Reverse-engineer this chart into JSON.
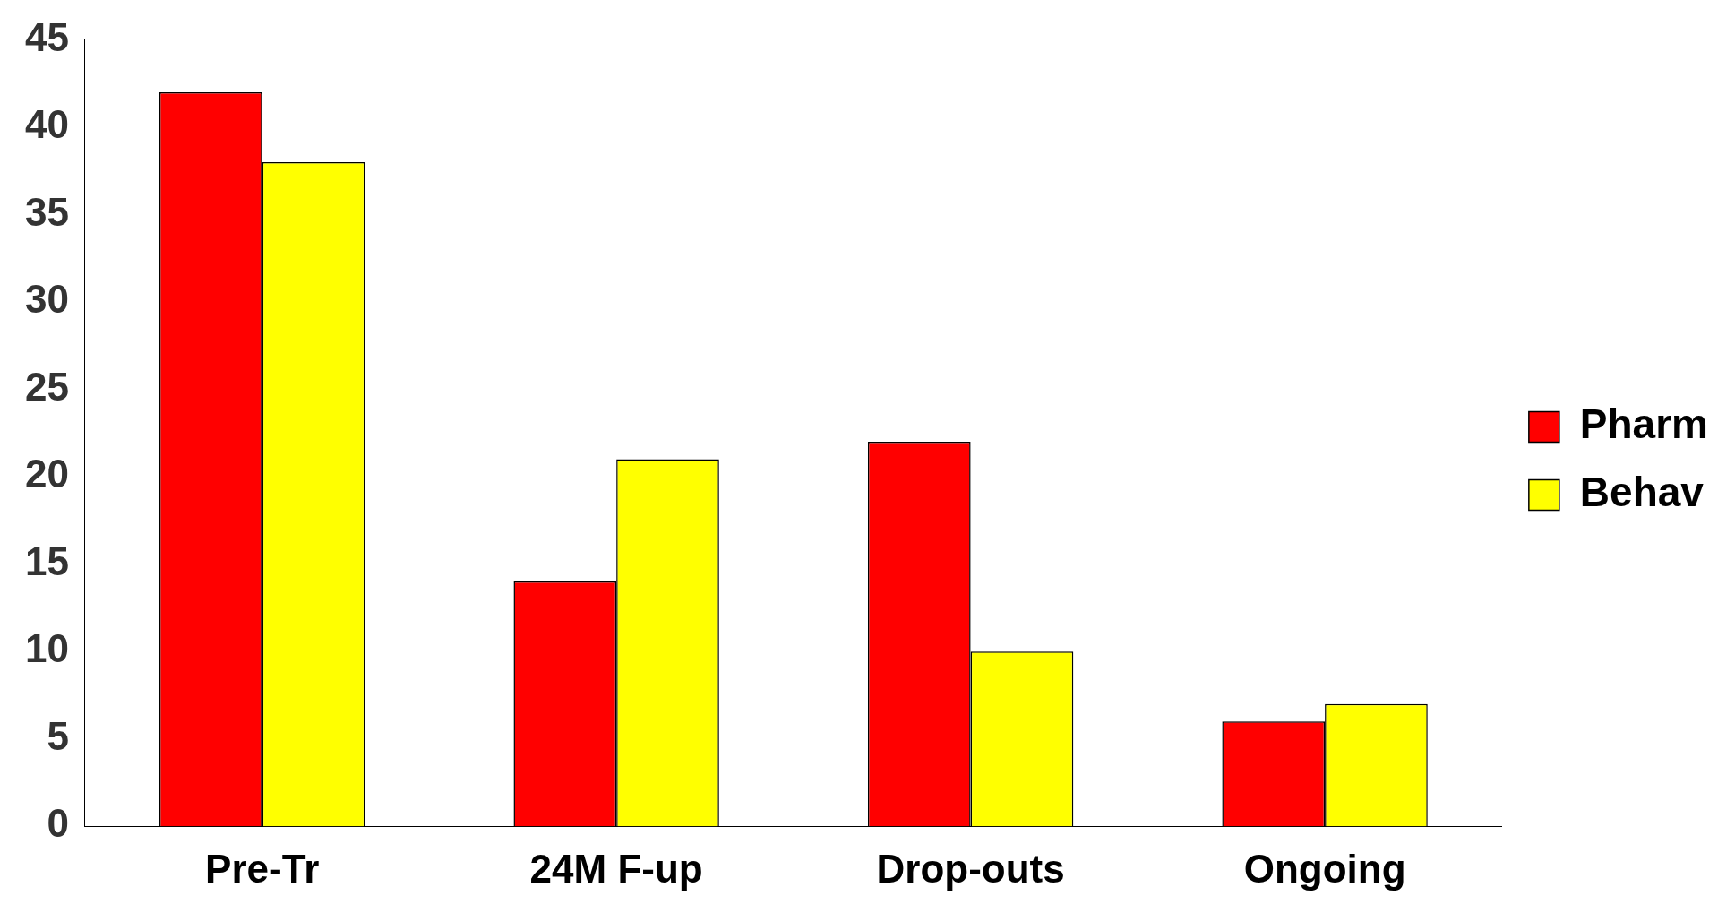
{
  "chart_data": {
    "type": "bar",
    "categories": [
      "Pre-Tr",
      "24M F-up",
      "Drop-outs",
      "Ongoing"
    ],
    "series": [
      {
        "name": "Pharm",
        "color": "#ff0000",
        "values": [
          42,
          14,
          22,
          6
        ]
      },
      {
        "name": "Behav",
        "color": "#ffff00",
        "values": [
          38,
          21,
          10,
          7
        ]
      }
    ],
    "ylim": [
      0,
      45
    ],
    "yticks": [
      0,
      5,
      10,
      15,
      20,
      25,
      30,
      35,
      40,
      45
    ],
    "grid": false,
    "legend": "right"
  }
}
